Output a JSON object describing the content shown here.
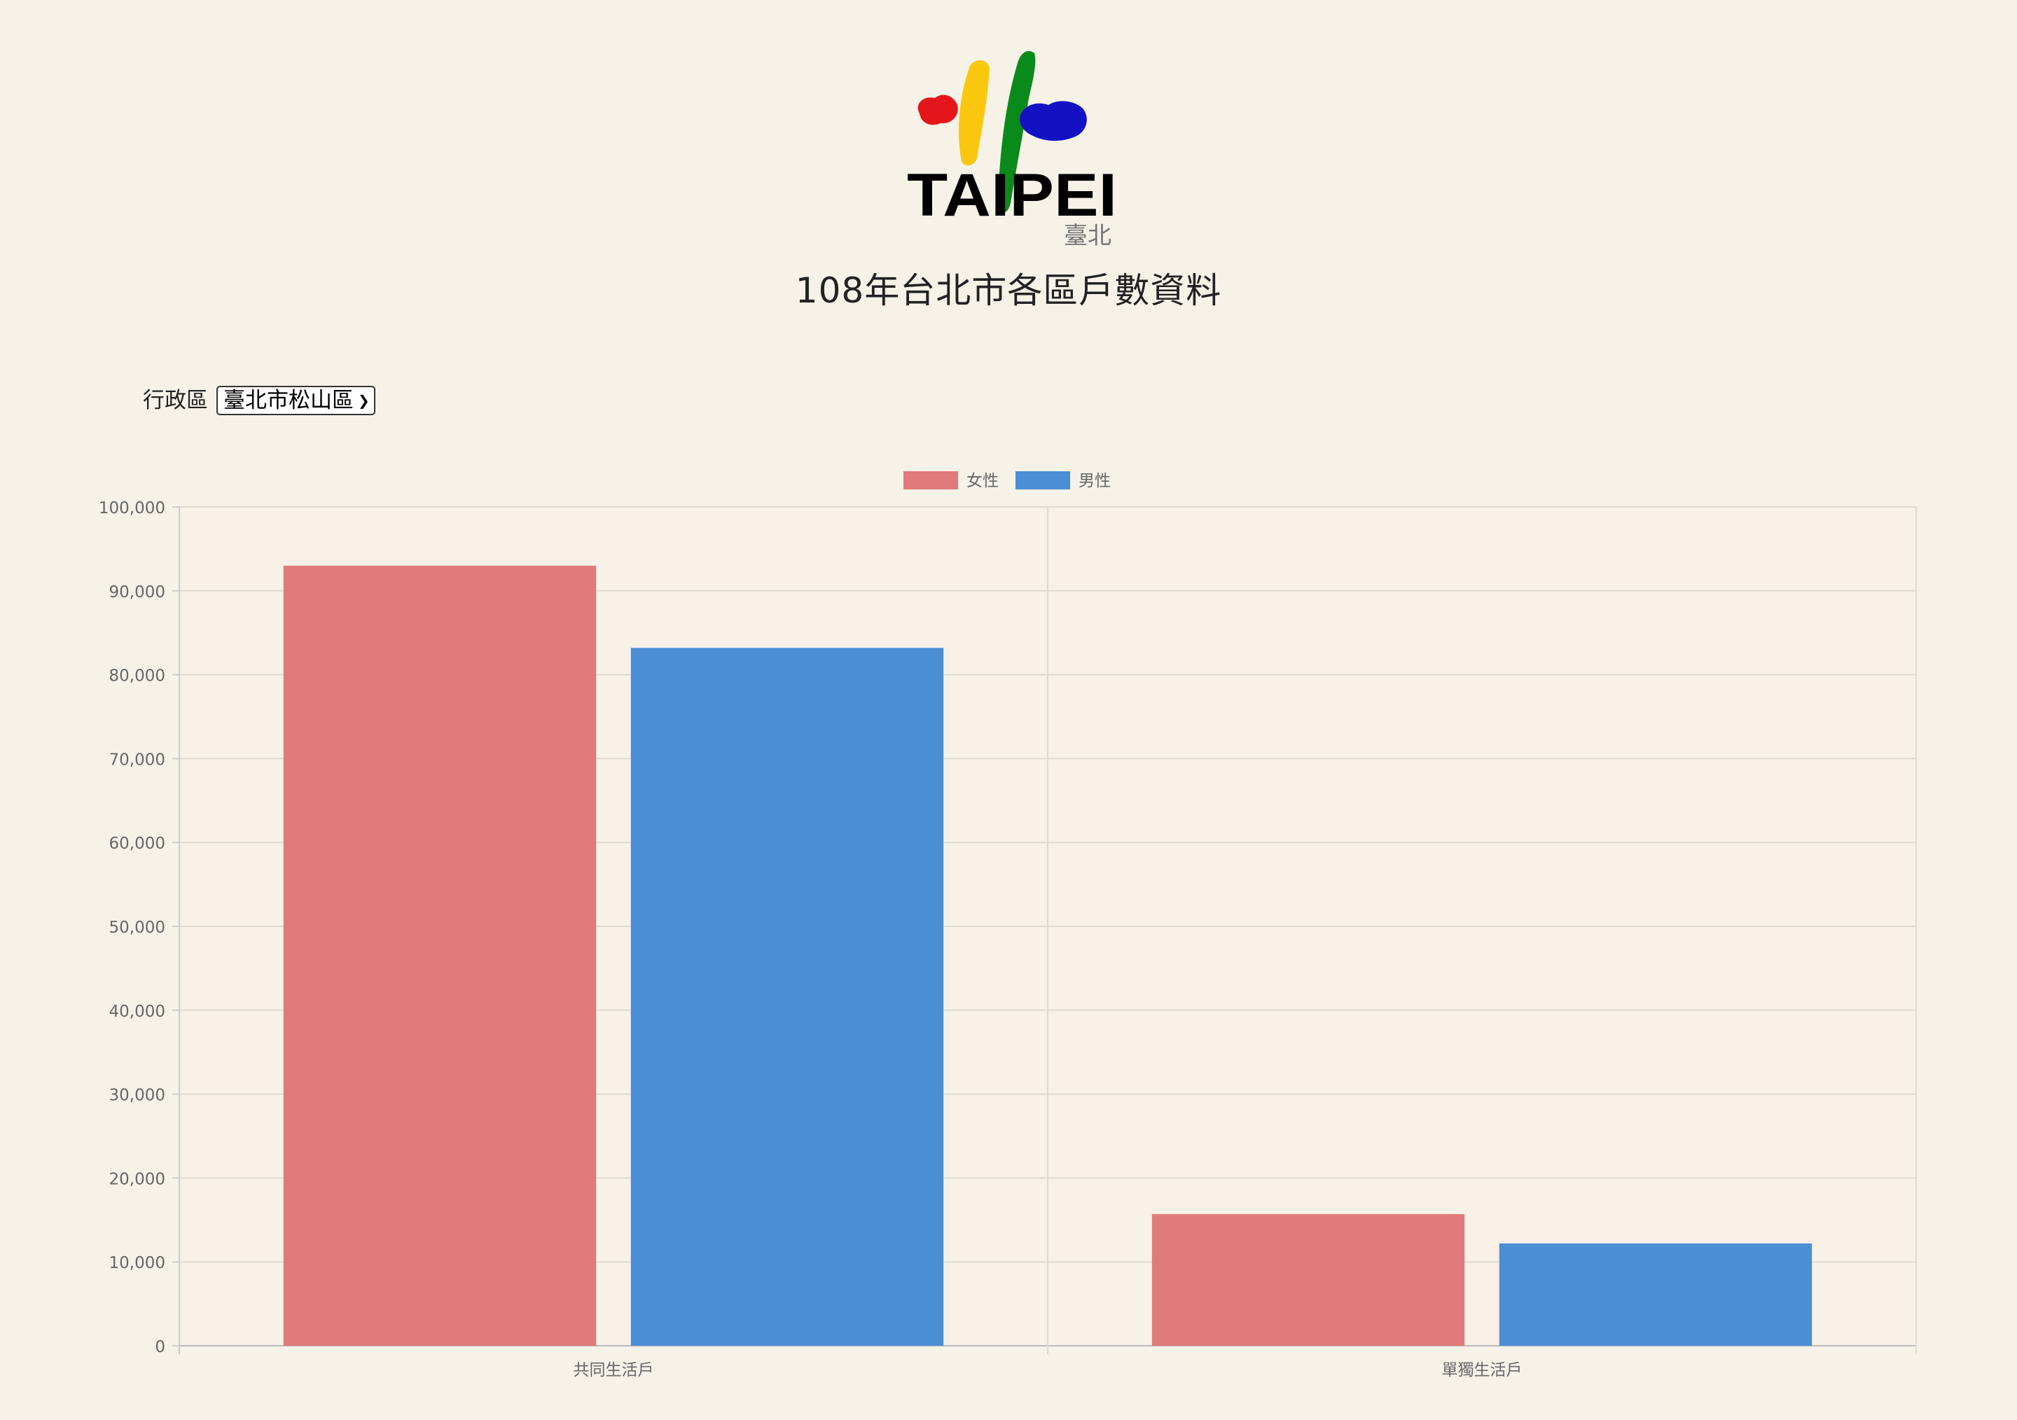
{
  "header": {
    "logo_word": "TAIPEI",
    "logo_sub": "臺北",
    "title": "108年台北市各區戶數資料"
  },
  "filter": {
    "label": "行政區",
    "selected": "臺北市松山區"
  },
  "colors": {
    "female": "#e07b7b",
    "male": "#4a8ed4",
    "logo_red": "#e4161b",
    "logo_yellow": "#f9c80e",
    "logo_green": "#0a8a1a",
    "logo_blue": "#1212c4"
  },
  "chart_data": {
    "type": "bar",
    "categories": [
      "共同生活戶",
      "單獨生活戶"
    ],
    "series": [
      {
        "name": "女性",
        "values": [
          93000,
          15700
        ]
      },
      {
        "name": "男性",
        "values": [
          83200,
          12200
        ]
      }
    ],
    "title": "",
    "xlabel": "",
    "ylabel": "",
    "ylim": [
      0,
      100000
    ],
    "yticks": [
      "0",
      "10,000",
      "20,000",
      "30,000",
      "40,000",
      "50,000",
      "60,000",
      "70,000",
      "80,000",
      "90,000",
      "100,000"
    ],
    "legend": "top-center",
    "grid": true
  }
}
